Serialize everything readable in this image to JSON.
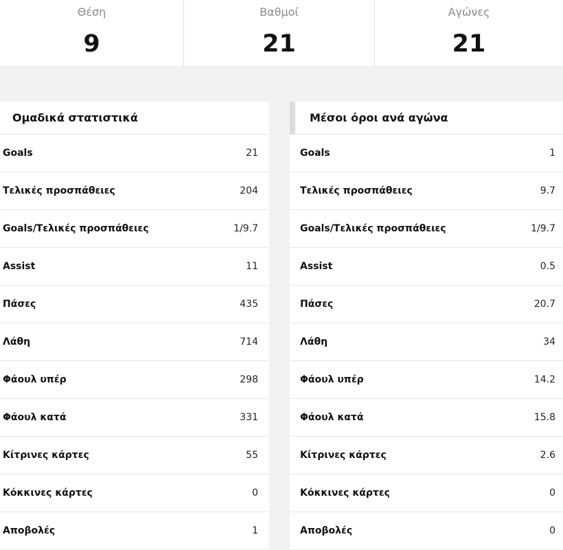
{
  "summary": {
    "position": {
      "label": "Θέση",
      "value": "9"
    },
    "points": {
      "label": "Βαθμοί",
      "value": "21"
    },
    "matches": {
      "label": "Αγώνες",
      "value": "21"
    }
  },
  "team_stats": {
    "title": "Ομαδικά στατιστικά",
    "rows": [
      {
        "label": "Goals",
        "value": "21"
      },
      {
        "label": "Τελικές προσπάθειες",
        "value": "204"
      },
      {
        "label": "Goals/Τελικές προσπάθειες",
        "value": "1/9.7"
      },
      {
        "label": "Assist",
        "value": "11"
      },
      {
        "label": "Πάσες",
        "value": "435"
      },
      {
        "label": "Λάθη",
        "value": "714"
      },
      {
        "label": "Φάουλ υπέρ",
        "value": "298"
      },
      {
        "label": "Φάουλ κατά",
        "value": "331"
      },
      {
        "label": "Κίτρινες κάρτες",
        "value": "55"
      },
      {
        "label": "Κόκκινες κάρτες",
        "value": "0"
      },
      {
        "label": "Αποβολές",
        "value": "1"
      }
    ]
  },
  "per_match": {
    "title": "Μέσοι όροι ανά αγώνα",
    "rows": [
      {
        "label": "Goals",
        "value": "1"
      },
      {
        "label": "Τελικές προσπάθειες",
        "value": "9.7"
      },
      {
        "label": "Goals/Τελικές προσπάθειες",
        "value": "1/9.7"
      },
      {
        "label": "Assist",
        "value": "0.5"
      },
      {
        "label": "Πάσες",
        "value": "20.7"
      },
      {
        "label": "Λάθη",
        "value": "34"
      },
      {
        "label": "Φάουλ υπέρ",
        "value": "14.2"
      },
      {
        "label": "Φάουλ κατά",
        "value": "15.8"
      },
      {
        "label": "Κίτρινες κάρτες",
        "value": "2.6"
      },
      {
        "label": "Κόκκινες κάρτες",
        "value": "0"
      },
      {
        "label": "Αποβολές",
        "value": "0"
      }
    ]
  }
}
